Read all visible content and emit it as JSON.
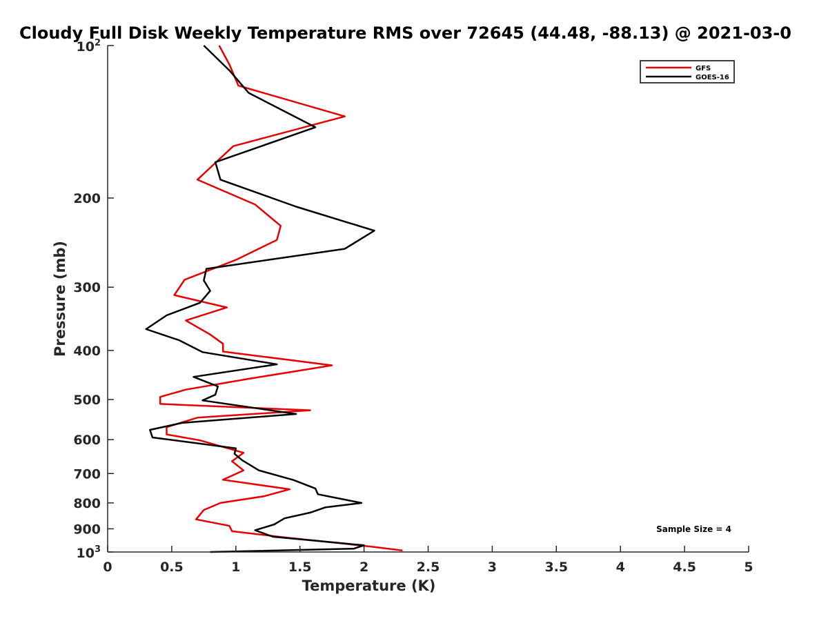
{
  "chart_data": {
    "type": "line",
    "title": "Cloudy Full Disk Weekly Temperature RMS over 72645 (44.48, -88.13) @ 2021-03-0",
    "xlabel": "Temperature (K)",
    "ylabel": "Pressure (mb)",
    "xlim": [
      0,
      5
    ],
    "ylim": [
      1000,
      100
    ],
    "yscale": "log",
    "y_reversed": true,
    "grid": false,
    "legend_position": "top-right",
    "x_ticks": [
      {
        "value": 0,
        "label": "0"
      },
      {
        "value": 0.5,
        "label": "0.5"
      },
      {
        "value": 1,
        "label": "1"
      },
      {
        "value": 1.5,
        "label": "1.5"
      },
      {
        "value": 2,
        "label": "2"
      },
      {
        "value": 2.5,
        "label": "2.5"
      },
      {
        "value": 3,
        "label": "3"
      },
      {
        "value": 3.5,
        "label": "3.5"
      },
      {
        "value": 4,
        "label": "4"
      },
      {
        "value": 4.5,
        "label": "4.5"
      },
      {
        "value": 5,
        "label": "5"
      }
    ],
    "y_ticks": [
      {
        "value": 100,
        "base": "10",
        "exp": "2"
      },
      {
        "value": 200,
        "label": "200"
      },
      {
        "value": 300,
        "label": "300"
      },
      {
        "value": 400,
        "label": "400"
      },
      {
        "value": 500,
        "label": "500"
      },
      {
        "value": 600,
        "label": "600"
      },
      {
        "value": 700,
        "label": "700"
      },
      {
        "value": 800,
        "label": "800"
      },
      {
        "value": 900,
        "label": "900"
      },
      {
        "value": 1000,
        "base": "10",
        "exp": "3"
      }
    ],
    "annotation": "Sample Size = 4",
    "series": [
      {
        "name": "GFS",
        "color": "#e60000",
        "points": [
          [
            0.87,
            100
          ],
          [
            0.95,
            109
          ],
          [
            1.02,
            120
          ],
          [
            1.85,
            138
          ],
          [
            0.98,
            158
          ],
          [
            0.7,
            184
          ],
          [
            1.15,
            206
          ],
          [
            1.35,
            227
          ],
          [
            1.32,
            242
          ],
          [
            1.0,
            265
          ],
          [
            0.6,
            290
          ],
          [
            0.52,
            311
          ],
          [
            0.93,
            329
          ],
          [
            0.61,
            349
          ],
          [
            0.8,
            372
          ],
          [
            0.9,
            388
          ],
          [
            0.9,
            402
          ],
          [
            1.75,
            428
          ],
          [
            1.1,
            455
          ],
          [
            0.61,
            478
          ],
          [
            0.41,
            494
          ],
          [
            0.41,
            510
          ],
          [
            1.58,
            525
          ],
          [
            0.7,
            543
          ],
          [
            0.46,
            567
          ],
          [
            0.46,
            586
          ],
          [
            0.72,
            602
          ],
          [
            1.06,
            637
          ],
          [
            0.97,
            662
          ],
          [
            1.06,
            690
          ],
          [
            0.9,
            720
          ],
          [
            1.42,
            752
          ],
          [
            1.22,
            776
          ],
          [
            0.88,
            800
          ],
          [
            0.75,
            826
          ],
          [
            0.69,
            862
          ],
          [
            0.95,
            888
          ],
          [
            0.97,
            910
          ],
          [
            1.4,
            937
          ],
          [
            1.75,
            957
          ],
          [
            2.04,
            975
          ],
          [
            2.3,
            993
          ]
        ]
      },
      {
        "name": "GOES-16",
        "color": "#000000",
        "points": [
          [
            0.75,
            100
          ],
          [
            0.95,
            112
          ],
          [
            1.1,
            124
          ],
          [
            1.62,
            145
          ],
          [
            0.84,
            170
          ],
          [
            0.88,
            184
          ],
          [
            1.47,
            208
          ],
          [
            2.08,
            232
          ],
          [
            1.85,
            252
          ],
          [
            0.77,
            276
          ],
          [
            0.75,
            291
          ],
          [
            0.8,
            305
          ],
          [
            0.72,
            322
          ],
          [
            0.46,
            341
          ],
          [
            0.3,
            363
          ],
          [
            0.56,
            382
          ],
          [
            0.74,
            403
          ],
          [
            1.32,
            426
          ],
          [
            0.67,
            451
          ],
          [
            0.86,
            471
          ],
          [
            0.84,
            489
          ],
          [
            0.74,
            502
          ],
          [
            1.47,
            534
          ],
          [
            0.58,
            556
          ],
          [
            0.33,
            574
          ],
          [
            0.35,
            594
          ],
          [
            1.0,
            624
          ],
          [
            0.99,
            640
          ],
          [
            1.05,
            659
          ],
          [
            1.18,
            690
          ],
          [
            1.45,
            721
          ],
          [
            1.62,
            749
          ],
          [
            1.64,
            769
          ],
          [
            1.98,
            800
          ],
          [
            1.7,
            816
          ],
          [
            1.58,
            836
          ],
          [
            1.38,
            858
          ],
          [
            1.3,
            882
          ],
          [
            1.15,
            906
          ],
          [
            1.29,
            933
          ],
          [
            2.0,
            970
          ],
          [
            1.92,
            985
          ],
          [
            0.8,
            1000
          ]
        ]
      }
    ]
  }
}
